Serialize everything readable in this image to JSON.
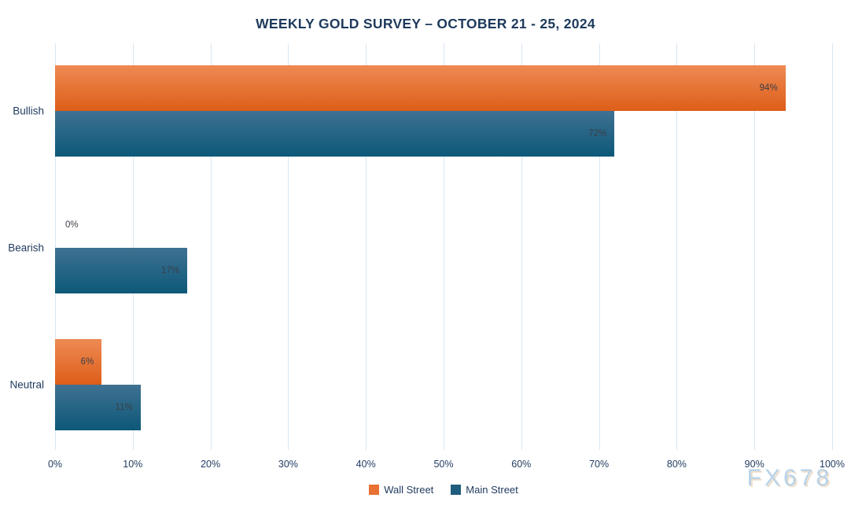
{
  "title": "WEEKLY GOLD SURVEY – OCTOBER 21 - 25, 2024",
  "watermark": "FX678",
  "colors": {
    "title_text": "#1e3a5c",
    "axis_text": "#1f3a5f",
    "value_label_text": "#3a3f46",
    "gridline": "#d9e7f3",
    "background": "#ffffff",
    "watermark_text": "#b7d3ea"
  },
  "chart_data": {
    "type": "bar",
    "orientation": "horizontal",
    "title": "WEEKLY GOLD SURVEY – OCTOBER 21 - 25, 2024",
    "categories": [
      "Bullish",
      "Bearish",
      "Neutral"
    ],
    "series": [
      {
        "name": "Wall Street",
        "values": [
          94,
          0,
          6
        ],
        "legend_color": "#e97132",
        "gradient_top": "#ee8a54",
        "gradient_bottom": "#dd5e18"
      },
      {
        "name": "Main Street",
        "values": [
          72,
          17,
          11
        ],
        "legend_color": "#1f5c7e",
        "gradient_top": "#3f7192",
        "gradient_bottom": "#0d5878"
      }
    ],
    "value_suffix": "%",
    "data_labels": {
      "Wall Street": [
        "94%",
        "0%",
        "6%"
      ],
      "Main Street": [
        "72%",
        "17%",
        "11%"
      ]
    },
    "xlabel": "",
    "ylabel": "",
    "xlim": [
      0,
      100
    ],
    "x_ticks": [
      "0%",
      "10%",
      "20%",
      "30%",
      "40%",
      "50%",
      "60%",
      "70%",
      "80%",
      "90%",
      "100%"
    ],
    "grid": "vertical",
    "legend_position": "bottom-center"
  }
}
